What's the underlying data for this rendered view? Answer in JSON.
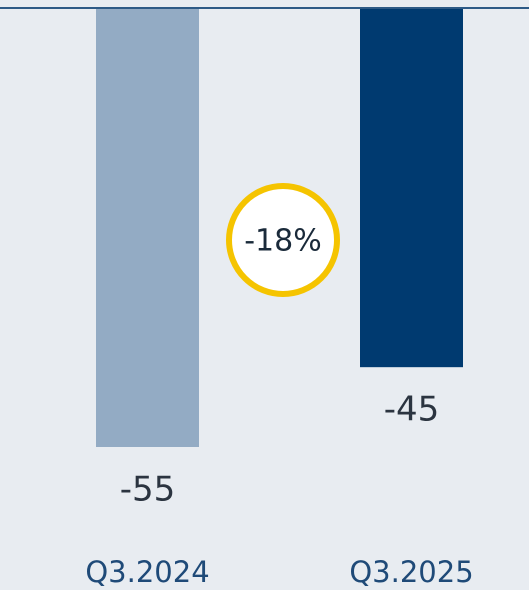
{
  "chart_data": {
    "type": "bar",
    "categories": [
      "Q3.2024",
      "Q3.2025"
    ],
    "values": [
      -55,
      -45
    ],
    "colors": [
      "#93abc4",
      "#003a70"
    ],
    "ylim": [
      -55,
      0
    ],
    "annotation": "-18%"
  }
}
